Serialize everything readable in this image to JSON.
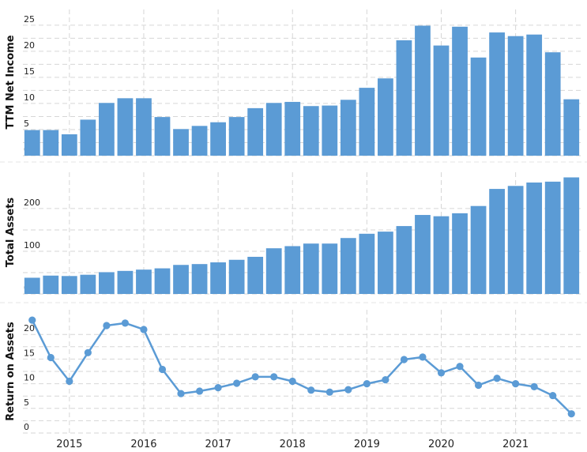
{
  "chart_data": [
    {
      "type": "bar",
      "ylabel": "TTM Net Income",
      "ylim": [
        0,
        28
      ],
      "yticks": [
        0,
        5,
        10,
        15,
        20,
        25
      ],
      "values": [
        4.9,
        4.9,
        4.1,
        6.9,
        10.1,
        11.0,
        11.0,
        7.4,
        5.1,
        5.7,
        6.4,
        7.4,
        9.1,
        10.1,
        10.3,
        9.5,
        9.6,
        10.7,
        13.0,
        14.8,
        22.1,
        24.9,
        21.1,
        24.7,
        18.8,
        23.6,
        22.9,
        23.2,
        19.8,
        10.8
      ],
      "color": "#5b9bd5",
      "grid": true
    },
    {
      "type": "bar",
      "ylabel": "Total Assets",
      "ylim": [
        0,
        285
      ],
      "yticks": [
        0,
        100,
        200
      ],
      "values": [
        38,
        43,
        42,
        45,
        51,
        54,
        57,
        60,
        68,
        70,
        74,
        80,
        87,
        107,
        112,
        118,
        118,
        131,
        141,
        146,
        159,
        185,
        182,
        189,
        206,
        246,
        253,
        261,
        263,
        273
      ],
      "color": "#5b9bd5",
      "grid": true
    },
    {
      "type": "line",
      "ylabel": "Return on Assets",
      "ylim": [
        0,
        25
      ],
      "yticks": [
        0,
        5,
        10,
        15,
        20
      ],
      "values": [
        22.9,
        15.3,
        10.5,
        16.3,
        21.8,
        22.3,
        21.0,
        12.9,
        8.0,
        8.5,
        9.2,
        10.1,
        11.4,
        11.4,
        10.5,
        8.7,
        8.3,
        8.8,
        10.0,
        10.8,
        14.9,
        15.4,
        12.2,
        13.5,
        9.7,
        11.1,
        10.0,
        9.4,
        7.6,
        3.9
      ],
      "color": "#5b9bd5",
      "grid": true
    }
  ],
  "x_axis": {
    "labels": [
      "2015",
      "2016",
      "2017",
      "2018",
      "2019",
      "2020",
      "2021"
    ],
    "label_index": [
      2,
      6,
      10,
      14,
      18,
      22,
      26
    ]
  }
}
